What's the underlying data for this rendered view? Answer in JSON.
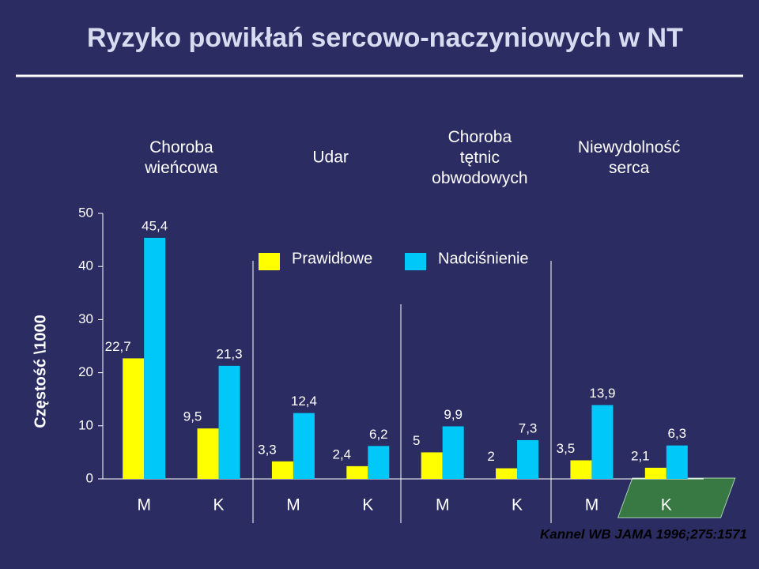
{
  "chart_data": {
    "type": "bar",
    "title": "Ryzyko powikłań sercowo-naczyniowych w NT",
    "ylabel": "Częstość \\1000",
    "groups": [
      "Choroba wieńcowa",
      "Udar",
      "Choroba tętnic obwodowych",
      "Niewydolność serca"
    ],
    "categories": [
      "M",
      "K",
      "M",
      "K",
      "M",
      "K",
      "M",
      "K"
    ],
    "series": [
      {
        "name": "Prawidłowe",
        "color": "#ffff00",
        "values": [
          22.7,
          9.5,
          3.3,
          2.4,
          5,
          2,
          3.5,
          2.1
        ],
        "value_labels": [
          "22,7",
          "9,5",
          "3,3",
          "2,4",
          "5",
          "2",
          "3,5",
          "2,1"
        ]
      },
      {
        "name": "Nadciśnienie",
        "color": "#00c8f8",
        "values": [
          45.4,
          21.3,
          12.4,
          6.2,
          9.9,
          7.3,
          13.9,
          6.3
        ],
        "value_labels": [
          "45,4",
          "21,3",
          "12,4",
          "6,2",
          "9,9",
          "7,3",
          "13,9",
          "6,3"
        ]
      }
    ],
    "ylim": [
      0,
      50
    ],
    "yticks": [
      0,
      10,
      20,
      30,
      40,
      50
    ],
    "source": "Kannel WB JAMA 1996;275:1571"
  }
}
